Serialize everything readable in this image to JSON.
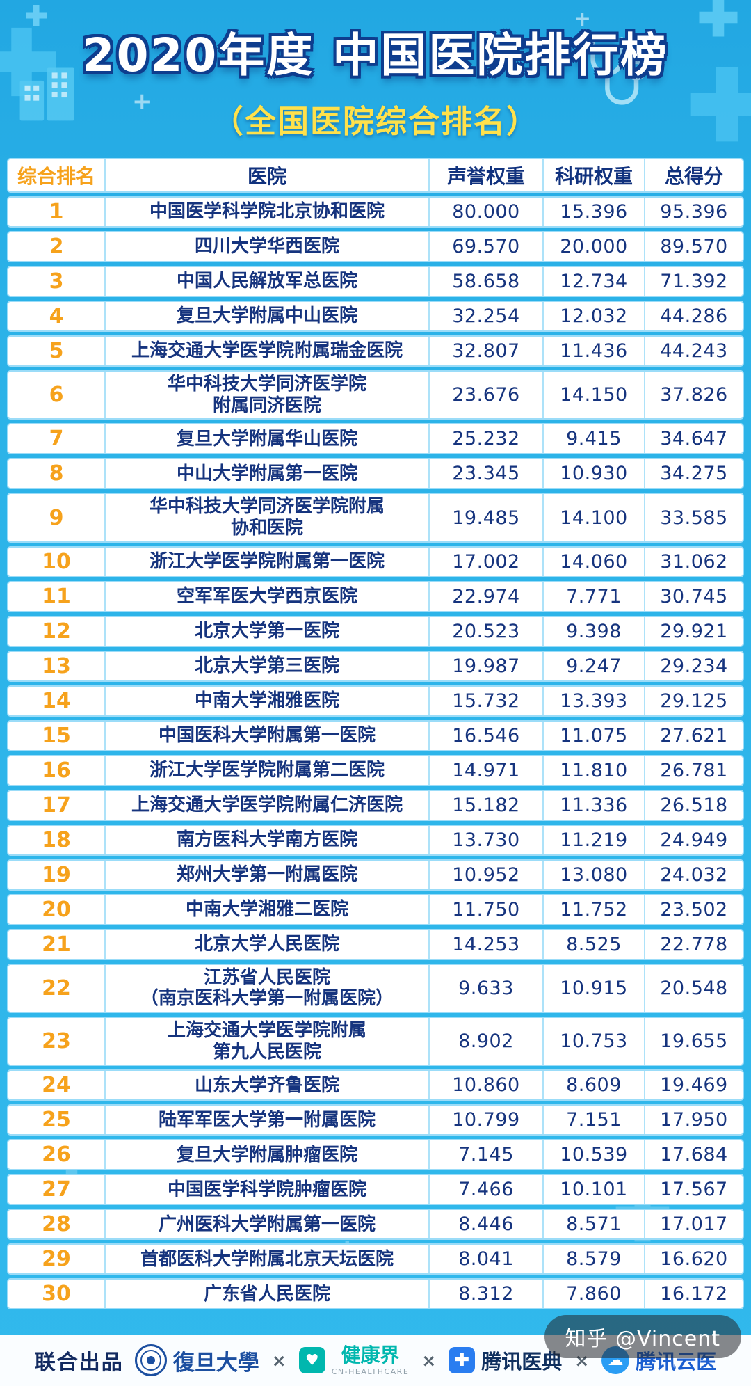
{
  "header": {
    "title": "2020年度 中国医院排行榜",
    "subtitle": "（全国医院综合排名）"
  },
  "chart_data": {
    "type": "table",
    "title": "2020年度 中国医院排行榜（全国医院综合排名）",
    "columns": [
      "综合排名",
      "医院",
      "声誉权重",
      "科研权重",
      "总得分"
    ],
    "rows": [
      [
        "1",
        "中国医学科学院北京协和医院",
        "80.000",
        "15.396",
        "95.396"
      ],
      [
        "2",
        "四川大学华西医院",
        "69.570",
        "20.000",
        "89.570"
      ],
      [
        "3",
        "中国人民解放军总医院",
        "58.658",
        "12.734",
        "71.392"
      ],
      [
        "4",
        "复旦大学附属中山医院",
        "32.254",
        "12.032",
        "44.286"
      ],
      [
        "5",
        "上海交通大学医学院附属瑞金医院",
        "32.807",
        "11.436",
        "44.243"
      ],
      [
        "6",
        "华中科技大学同济医学院\n附属同济医院",
        "23.676",
        "14.150",
        "37.826"
      ],
      [
        "7",
        "复旦大学附属华山医院",
        "25.232",
        "9.415",
        "34.647"
      ],
      [
        "8",
        "中山大学附属第一医院",
        "23.345",
        "10.930",
        "34.275"
      ],
      [
        "9",
        "华中科技大学同济医学院附属\n协和医院",
        "19.485",
        "14.100",
        "33.585"
      ],
      [
        "10",
        "浙江大学医学院附属第一医院",
        "17.002",
        "14.060",
        "31.062"
      ],
      [
        "11",
        "空军军医大学西京医院",
        "22.974",
        "7.771",
        "30.745"
      ],
      [
        "12",
        "北京大学第一医院",
        "20.523",
        "9.398",
        "29.921"
      ],
      [
        "13",
        "北京大学第三医院",
        "19.987",
        "9.247",
        "29.234"
      ],
      [
        "14",
        "中南大学湘雅医院",
        "15.732",
        "13.393",
        "29.125"
      ],
      [
        "15",
        "中国医科大学附属第一医院",
        "16.546",
        "11.075",
        "27.621"
      ],
      [
        "16",
        "浙江大学医学院附属第二医院",
        "14.971",
        "11.810",
        "26.781"
      ],
      [
        "17",
        "上海交通大学医学院附属仁济医院",
        "15.182",
        "11.336",
        "26.518"
      ],
      [
        "18",
        "南方医科大学南方医院",
        "13.730",
        "11.219",
        "24.949"
      ],
      [
        "19",
        "郑州大学第一附属医院",
        "10.952",
        "13.080",
        "24.032"
      ],
      [
        "20",
        "中南大学湘雅二医院",
        "11.750",
        "11.752",
        "23.502"
      ],
      [
        "21",
        "北京大学人民医院",
        "14.253",
        "8.525",
        "22.778"
      ],
      [
        "22",
        "江苏省人民医院\n（南京医科大学第一附属医院）",
        "9.633",
        "10.915",
        "20.548"
      ],
      [
        "23",
        "上海交通大学医学院附属\n第九人民医院",
        "8.902",
        "10.753",
        "19.655"
      ],
      [
        "24",
        "山东大学齐鲁医院",
        "10.860",
        "8.609",
        "19.469"
      ],
      [
        "25",
        "陆军军医大学第一附属医院",
        "10.799",
        "7.151",
        "17.950"
      ],
      [
        "26",
        "复旦大学附属肿瘤医院",
        "7.145",
        "10.539",
        "17.684"
      ],
      [
        "27",
        "中国医学科学院肿瘤医院",
        "7.466",
        "10.101",
        "17.567"
      ],
      [
        "28",
        "广州医科大学附属第一医院",
        "8.446",
        "8.571",
        "17.017"
      ],
      [
        "29",
        "首都医科大学附属北京天坛医院",
        "8.041",
        "8.579",
        "16.620"
      ],
      [
        "30",
        "广东省人民医院",
        "8.312",
        "7.860",
        "16.172"
      ]
    ]
  },
  "footer": {
    "label": "联合出品",
    "separator": "×",
    "partners": [
      {
        "name": "復旦大學"
      },
      {
        "name": "健康界",
        "sub": "CN-HEALTHCARE"
      },
      {
        "name": "腾讯医典"
      },
      {
        "name": "腾讯云医"
      }
    ]
  },
  "watermark": "知乎 @Vincent",
  "colors": {
    "background": "#2BB2E8",
    "rank_accent": "#F6A21C",
    "table_text": "#16347E",
    "subtitle": "#FFE14B",
    "cell_border": "#9BDCF8"
  }
}
